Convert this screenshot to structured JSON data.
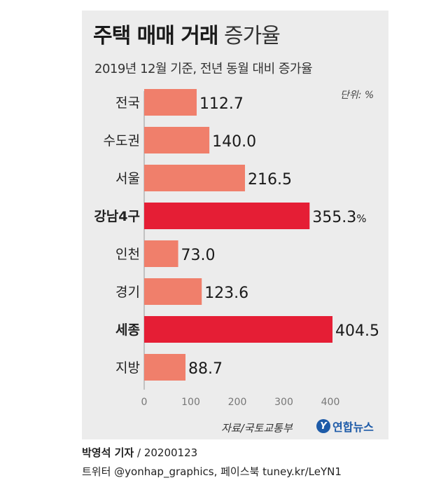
{
  "header": {
    "title_bold": "주택 매매 거래",
    "title_light": "증가율",
    "subtitle": "2019년 12월 기준, 전년 동월 대비 증가율",
    "unit": "단위: %"
  },
  "chart_data": {
    "type": "bar",
    "orientation": "horizontal",
    "categories": [
      "전국",
      "수도권",
      "서울",
      "강남4구",
      "인천",
      "경기",
      "세종",
      "지방"
    ],
    "values": [
      112.7,
      140.0,
      216.5,
      355.3,
      73.0,
      123.6,
      404.5,
      88.7
    ],
    "value_labels": [
      "112.7",
      "140.0",
      "216.5",
      "355.3",
      "73.0",
      "123.6",
      "404.5",
      "88.7"
    ],
    "value_suffix": [
      "",
      "",
      "",
      "%",
      "",
      "",
      "",
      ""
    ],
    "highlight": [
      false,
      false,
      false,
      true,
      false,
      false,
      true,
      false
    ],
    "xlim": [
      0,
      400
    ],
    "xticks": [
      "0",
      "100",
      "200",
      "300",
      "400"
    ],
    "colors": {
      "normal": "#f07f6b",
      "highlight": "#e51e35"
    }
  },
  "footer": {
    "source": "자료/국토교통부",
    "logo_mark": "Y",
    "logo_name": "연합뉴스",
    "author": "박영석 기자",
    "date": "/ 20200123",
    "social": "트위터 @yonhap_graphics, 페이스북 tuney.kr/LeYN1"
  }
}
